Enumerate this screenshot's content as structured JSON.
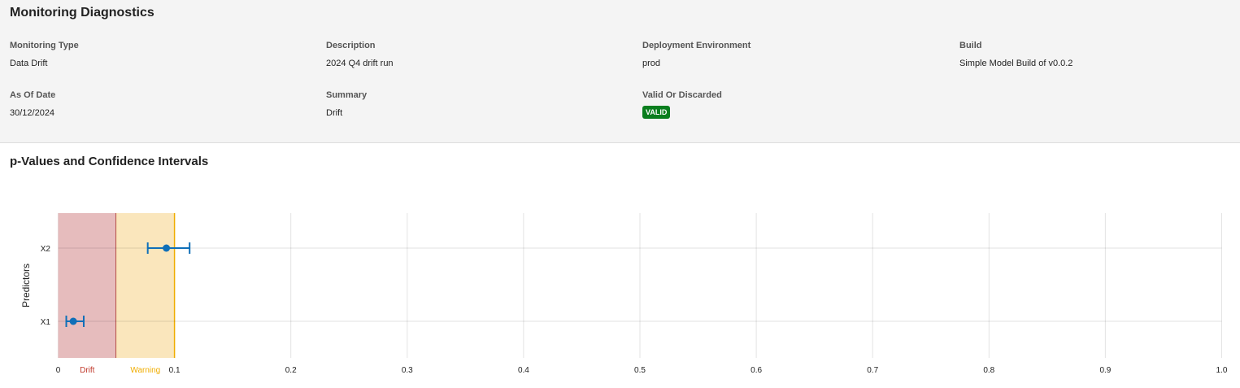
{
  "header": {
    "title": "Monitoring Diagnostics",
    "fields": [
      {
        "label": "Monitoring Type",
        "value": "Data Drift"
      },
      {
        "label": "Description",
        "value": "2024 Q4 drift run"
      },
      {
        "label": "Deployment Environment",
        "value": "prod"
      },
      {
        "label": "Build",
        "value": "Simple Model Build of v0.0.2"
      },
      {
        "label": "As Of Date",
        "value": "30/12/2024"
      },
      {
        "label": "Summary",
        "value": "Drift"
      },
      {
        "label": "Valid Or Discarded",
        "value": "VALID"
      }
    ],
    "badge_color": "#0a7e1e"
  },
  "section_title": "p-Values and Confidence Intervals",
  "chart_data": {
    "type": "scatter",
    "ylabel": "Predictors",
    "xlim": [
      0,
      1
    ],
    "xticks": [
      "0",
      "0.1",
      "0.2",
      "0.3",
      "0.4",
      "0.5",
      "0.6",
      "0.7",
      "0.8",
      "0.9",
      "1.0"
    ],
    "grid": true,
    "categories": [
      "X2",
      "X1"
    ],
    "points": [
      {
        "name": "X2",
        "p_value": 0.093,
        "ci_low": 0.077,
        "ci_high": 0.113
      },
      {
        "name": "X1",
        "p_value": 0.013,
        "ci_low": 0.007,
        "ci_high": 0.022
      }
    ],
    "regions": [
      {
        "label": "Drift",
        "from": 0,
        "to": 0.05,
        "fill": "#e6bcbd",
        "line": "#a52a1e",
        "text_color": "#c0392b"
      },
      {
        "label": "Warning",
        "from": 0.05,
        "to": 0.1,
        "fill": "#fae6bc",
        "line": "#f0ad00",
        "text_color": "#f0ad00"
      }
    ],
    "point_color": "#0f6fb8"
  }
}
